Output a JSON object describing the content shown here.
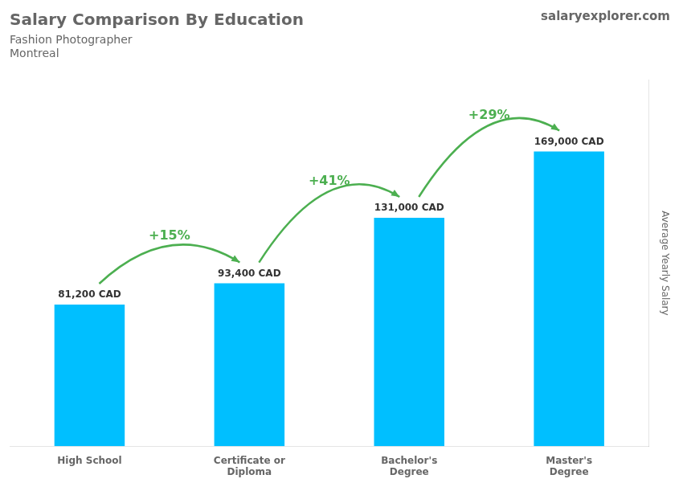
{
  "chart_data": {
    "type": "bar",
    "title": "Salary Comparison By Education",
    "subtitle": [
      "Fashion Photographer",
      "Montreal"
    ],
    "brand": "salaryexplorer.com",
    "ylabel": "Average Yearly Salary",
    "categories": [
      "High School",
      "Certificate or\nDiploma",
      "Bachelor's\nDegree",
      "Master's\nDegree"
    ],
    "values": [
      81200,
      93400,
      131000,
      169000
    ],
    "value_labels": [
      "81,200 CAD",
      "93,400 CAD",
      "131,000 CAD",
      "169,000 CAD"
    ],
    "data_labels": true,
    "annotations": [
      "+15%",
      "+41%",
      "+29%"
    ],
    "color": "#00BFFF",
    "ylim": [
      0,
      210000
    ],
    "grid": false,
    "tick_labels": "x"
  }
}
